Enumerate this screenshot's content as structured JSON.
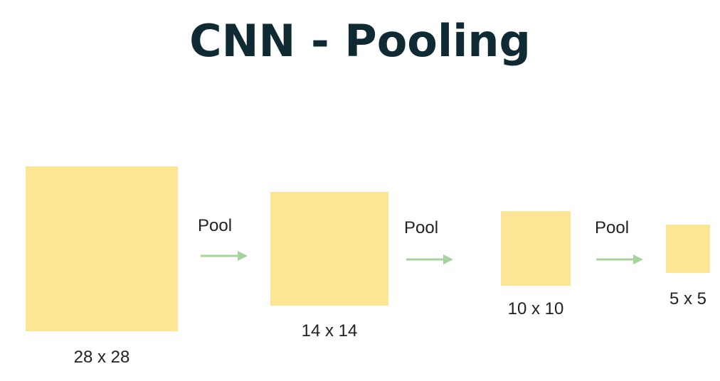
{
  "title": "CNN - Pooling",
  "colors": {
    "title": "#0f2a33",
    "feature_map": "#fde596",
    "arrow": "#a6d39c",
    "label": "#222222"
  },
  "feature_maps": [
    {
      "size_label": "28 x 28"
    },
    {
      "size_label": "14 x 14"
    },
    {
      "size_label": "10 x 10"
    },
    {
      "size_label": "5 x 5"
    }
  ],
  "operations": [
    {
      "label": "Pool"
    },
    {
      "label": "Pool"
    },
    {
      "label": "Pool"
    }
  ]
}
